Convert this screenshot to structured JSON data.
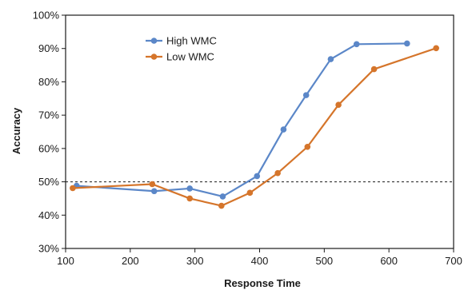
{
  "chart_data": {
    "type": "line",
    "xlabel": "Response Time",
    "ylabel": "Accuracy",
    "xlim": [
      100,
      700
    ],
    "ylim": [
      30,
      100
    ],
    "x_ticks": [
      100,
      200,
      300,
      400,
      500,
      600,
      700
    ],
    "y_ticks": [
      30,
      40,
      50,
      60,
      70,
      80,
      90,
      100
    ],
    "y_tick_labels": [
      "30%",
      "40%",
      "50%",
      "60%",
      "70%",
      "80%",
      "90%",
      "100%"
    ],
    "reference_line": {
      "y": 50,
      "style": "dashed"
    },
    "legend_position": "upper-left",
    "grid": false,
    "series": [
      {
        "name": "High WMC",
        "color": "#5b87c8",
        "points": [
          {
            "x": 117,
            "y": 48.8
          },
          {
            "x": 237,
            "y": 47.2
          },
          {
            "x": 292,
            "y": 48.0
          },
          {
            "x": 343,
            "y": 45.6
          },
          {
            "x": 396,
            "y": 51.7
          },
          {
            "x": 437,
            "y": 65.7
          },
          {
            "x": 472,
            "y": 76.0
          },
          {
            "x": 510,
            "y": 86.8
          },
          {
            "x": 550,
            "y": 91.3
          },
          {
            "x": 628,
            "y": 91.5
          }
        ]
      },
      {
        "name": "Low WMC",
        "color": "#d5752b",
        "points": [
          {
            "x": 111,
            "y": 48.1
          },
          {
            "x": 234,
            "y": 49.3
          },
          {
            "x": 292,
            "y": 45.0
          },
          {
            "x": 341,
            "y": 42.8
          },
          {
            "x": 385,
            "y": 46.7
          },
          {
            "x": 428,
            "y": 52.6
          },
          {
            "x": 474,
            "y": 60.5
          },
          {
            "x": 522,
            "y": 73.1
          },
          {
            "x": 577,
            "y": 83.8
          },
          {
            "x": 673,
            "y": 90.1
          }
        ]
      }
    ]
  }
}
